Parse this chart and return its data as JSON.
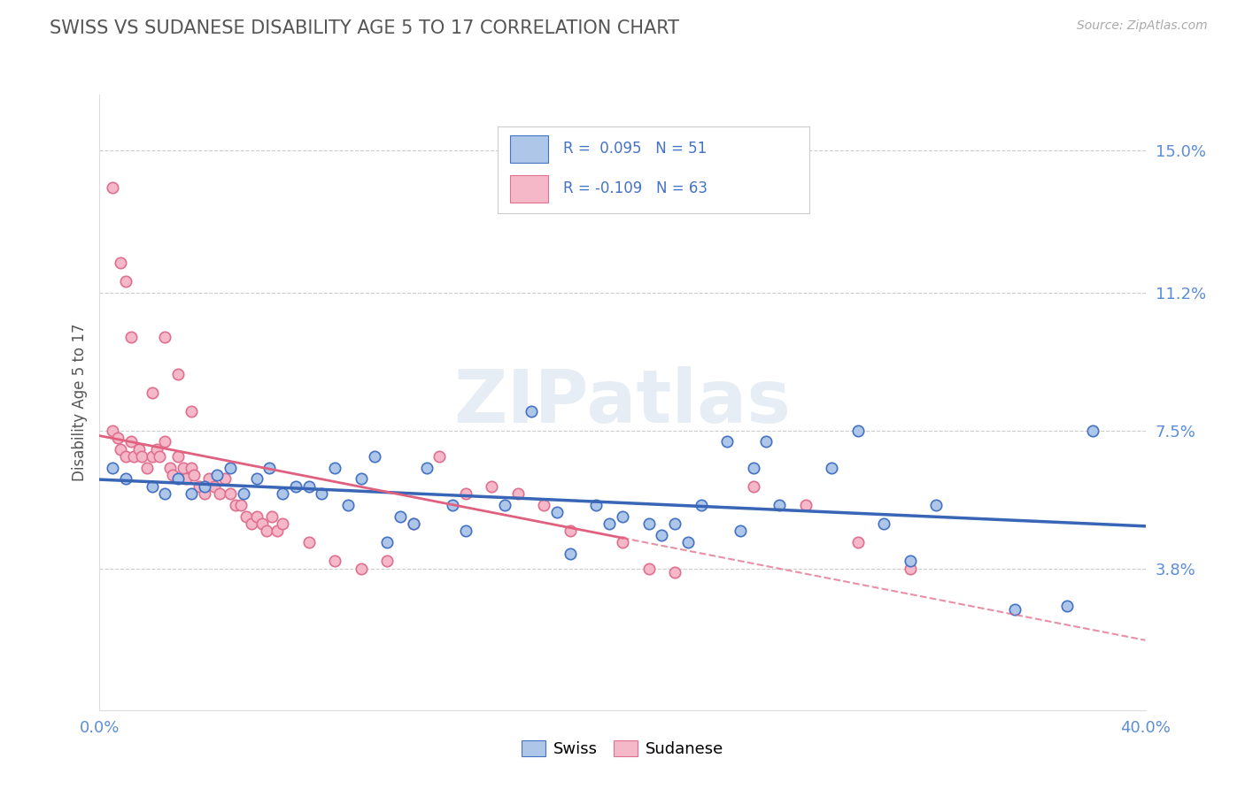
{
  "title": "SWISS VS SUDANESE DISABILITY AGE 5 TO 17 CORRELATION CHART",
  "source": "Source: ZipAtlas.com",
  "ylabel": "Disability Age 5 to 17",
  "xlim": [
    0.0,
    0.4
  ],
  "ylim": [
    0.0,
    0.165
  ],
  "xticks": [
    0.0,
    0.4
  ],
  "xticklabels": [
    "0.0%",
    "40.0%"
  ],
  "yticks": [
    0.038,
    0.075,
    0.112,
    0.15
  ],
  "yticklabels": [
    "3.8%",
    "7.5%",
    "11.2%",
    "15.0%"
  ],
  "swiss_color": "#aec6e8",
  "swiss_edge_color": "#4472c4",
  "sudanese_color": "#f5b8c8",
  "sudanese_edge_color": "#e07090",
  "swiss_line_color": "#3865b5",
  "sudanese_line_color": "#e06080",
  "R_swiss": 0.095,
  "N_swiss": 51,
  "R_sudanese": -0.109,
  "N_sudanese": 63,
  "background_color": "#ffffff",
  "grid_color": "#cccccc",
  "watermark": "ZIPatlas",
  "title_color": "#555555",
  "axis_label_color": "#888888",
  "tick_color": "#5b8dd9",
  "swiss_x": [
    0.005,
    0.01,
    0.02,
    0.025,
    0.03,
    0.035,
    0.04,
    0.045,
    0.05,
    0.055,
    0.06,
    0.065,
    0.07,
    0.075,
    0.08,
    0.085,
    0.09,
    0.095,
    0.1,
    0.105,
    0.11,
    0.115,
    0.12,
    0.125,
    0.135,
    0.14,
    0.155,
    0.165,
    0.175,
    0.18,
    0.19,
    0.195,
    0.2,
    0.21,
    0.215,
    0.22,
    0.225,
    0.23,
    0.24,
    0.245,
    0.25,
    0.255,
    0.26,
    0.28,
    0.29,
    0.3,
    0.31,
    0.32,
    0.35,
    0.37,
    0.38
  ],
  "swiss_y": [
    0.065,
    0.062,
    0.06,
    0.058,
    0.062,
    0.058,
    0.06,
    0.063,
    0.065,
    0.058,
    0.062,
    0.065,
    0.058,
    0.06,
    0.06,
    0.058,
    0.065,
    0.055,
    0.062,
    0.068,
    0.045,
    0.052,
    0.05,
    0.065,
    0.055,
    0.048,
    0.055,
    0.08,
    0.053,
    0.042,
    0.055,
    0.05,
    0.052,
    0.05,
    0.047,
    0.05,
    0.045,
    0.055,
    0.072,
    0.048,
    0.065,
    0.072,
    0.055,
    0.065,
    0.075,
    0.05,
    0.04,
    0.055,
    0.027,
    0.028,
    0.075
  ],
  "sudanese_x": [
    0.005,
    0.007,
    0.008,
    0.01,
    0.012,
    0.013,
    0.015,
    0.016,
    0.018,
    0.02,
    0.022,
    0.023,
    0.025,
    0.027,
    0.028,
    0.03,
    0.032,
    0.033,
    0.035,
    0.036,
    0.038,
    0.04,
    0.042,
    0.044,
    0.046,
    0.048,
    0.05,
    0.052,
    0.054,
    0.056,
    0.058,
    0.06,
    0.062,
    0.064,
    0.066,
    0.068,
    0.07,
    0.08,
    0.09,
    0.1,
    0.11,
    0.12,
    0.13,
    0.14,
    0.15,
    0.16,
    0.17,
    0.18,
    0.2,
    0.21,
    0.22,
    0.25,
    0.27,
    0.29,
    0.31,
    0.005,
    0.008,
    0.01,
    0.012,
    0.02,
    0.025,
    0.03,
    0.035
  ],
  "sudanese_y": [
    0.075,
    0.073,
    0.07,
    0.068,
    0.072,
    0.068,
    0.07,
    0.068,
    0.065,
    0.068,
    0.07,
    0.068,
    0.072,
    0.065,
    0.063,
    0.068,
    0.065,
    0.062,
    0.065,
    0.063,
    0.06,
    0.058,
    0.062,
    0.06,
    0.058,
    0.062,
    0.058,
    0.055,
    0.055,
    0.052,
    0.05,
    0.052,
    0.05,
    0.048,
    0.052,
    0.048,
    0.05,
    0.045,
    0.04,
    0.038,
    0.04,
    0.05,
    0.068,
    0.058,
    0.06,
    0.058,
    0.055,
    0.048,
    0.045,
    0.038,
    0.037,
    0.06,
    0.055,
    0.045,
    0.038,
    0.14,
    0.12,
    0.115,
    0.1,
    0.085,
    0.1,
    0.09,
    0.08
  ]
}
